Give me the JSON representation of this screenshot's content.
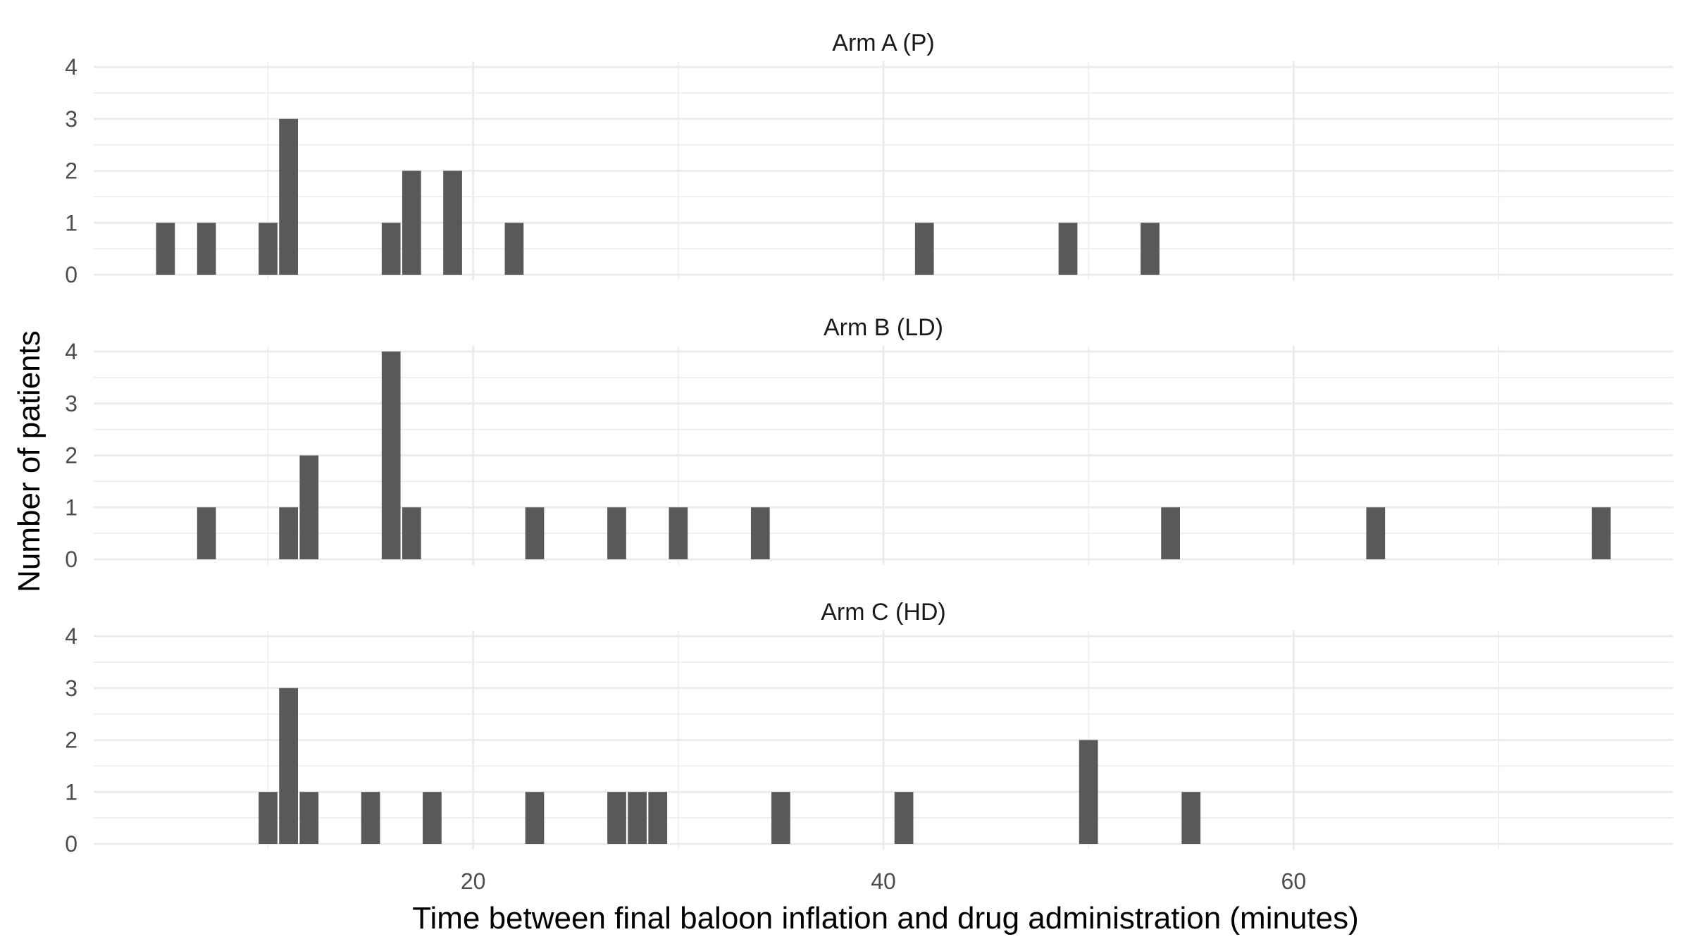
{
  "chart_data": {
    "type": "bar",
    "facet_layout": "stacked panels, shared x axis",
    "xlabel": "Time between final baloon inflation and drug administration (minutes)",
    "ylabel": "Number of patients",
    "xlim": [
      1.5,
      78.5
    ],
    "ylim": [
      0,
      4
    ],
    "x_ticks": [
      20,
      40,
      60
    ],
    "y_ticks": [
      0,
      1,
      2,
      3,
      4
    ],
    "bin_width": 1,
    "grid": true,
    "bar_color": "#595959",
    "panels": [
      {
        "title": "Arm A (P)",
        "bars": [
          {
            "x": 5,
            "count": 1
          },
          {
            "x": 7,
            "count": 1
          },
          {
            "x": 10,
            "count": 1
          },
          {
            "x": 11,
            "count": 3
          },
          {
            "x": 16,
            "count": 1
          },
          {
            "x": 17,
            "count": 2
          },
          {
            "x": 19,
            "count": 2
          },
          {
            "x": 22,
            "count": 1
          },
          {
            "x": 42,
            "count": 1
          },
          {
            "x": 49,
            "count": 1
          },
          {
            "x": 53,
            "count": 1
          }
        ]
      },
      {
        "title": "Arm B (LD)",
        "bars": [
          {
            "x": 7,
            "count": 1
          },
          {
            "x": 11,
            "count": 1
          },
          {
            "x": 12,
            "count": 2
          },
          {
            "x": 16,
            "count": 4
          },
          {
            "x": 17,
            "count": 1
          },
          {
            "x": 23,
            "count": 1
          },
          {
            "x": 27,
            "count": 1
          },
          {
            "x": 30,
            "count": 1
          },
          {
            "x": 34,
            "count": 1
          },
          {
            "x": 54,
            "count": 1
          },
          {
            "x": 64,
            "count": 1
          },
          {
            "x": 75,
            "count": 1
          }
        ]
      },
      {
        "title": "Arm C (HD)",
        "bars": [
          {
            "x": 10,
            "count": 1
          },
          {
            "x": 11,
            "count": 3
          },
          {
            "x": 12,
            "count": 1
          },
          {
            "x": 15,
            "count": 1
          },
          {
            "x": 18,
            "count": 1
          },
          {
            "x": 23,
            "count": 1
          },
          {
            "x": 27,
            "count": 1
          },
          {
            "x": 28,
            "count": 1
          },
          {
            "x": 29,
            "count": 1
          },
          {
            "x": 35,
            "count": 1
          },
          {
            "x": 41,
            "count": 1
          },
          {
            "x": 50,
            "count": 2
          },
          {
            "x": 55,
            "count": 1
          }
        ]
      }
    ]
  }
}
